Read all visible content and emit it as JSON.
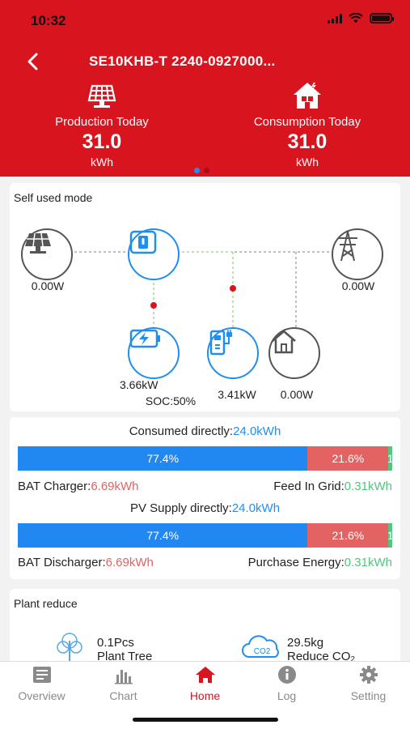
{
  "status": {
    "time": "10:32"
  },
  "header": {
    "title": "SE10KHB-T 2240-0927000...",
    "production": {
      "label": "Production Today",
      "value": "31.0",
      "unit": "kWh"
    },
    "consumption": {
      "label": "Consumption Today",
      "value": "31.0",
      "unit": "kWh"
    },
    "page_dots": {
      "count": 2,
      "active": 0
    }
  },
  "flow": {
    "mode": "Self used mode",
    "pv": "0.00W",
    "grid": "0.00W",
    "battery_power": "3.66kW",
    "battery_soc": "SOC:50%",
    "ev_charger": "3.41kW",
    "home": "0.00W"
  },
  "energy": {
    "consumed_label": "Consumed directly:",
    "consumed_value": "24.0kWh",
    "bar1": {
      "seg1": "77.4%",
      "seg2": "21.6%",
      "seg3": "1",
      "fractions": [
        77.4,
        21.6,
        1.0
      ]
    },
    "bat_charger_label": "BAT Charger:",
    "bat_charger_value": "6.69kWh",
    "feed_in_label": "Feed In Grid:",
    "feed_in_value": "0.31kWh",
    "pv_supply_label": "PV Supply directly:",
    "pv_supply_value": "24.0kWh",
    "bar2": {
      "seg1": "77.4%",
      "seg2": "21.6%",
      "seg3": "1",
      "fractions": [
        77.4,
        21.6,
        1.0
      ]
    },
    "bat_discharger_label": "BAT Discharger:",
    "bat_discharger_value": "6.69kWh",
    "purchase_label": "Purchase Energy:",
    "purchase_value": "0.31kWh"
  },
  "plant": {
    "title": "Plant reduce",
    "tree_value": "0.1Pcs",
    "tree_label": "Plant Tree",
    "co2_value": "29.5kg",
    "co2_label": "Reduce CO₂"
  },
  "tabs": [
    {
      "label": "Overview",
      "icon": "overview-icon"
    },
    {
      "label": "Chart",
      "icon": "chart-icon"
    },
    {
      "label": "Home",
      "icon": "home-icon",
      "active": true
    },
    {
      "label": "Log",
      "icon": "info-icon"
    },
    {
      "label": "Setting",
      "icon": "gear-icon"
    }
  ],
  "colors": {
    "brand": "#d8141f",
    "blue": "#1e8ff0",
    "red": "#e36363",
    "green": "#53c57c"
  }
}
